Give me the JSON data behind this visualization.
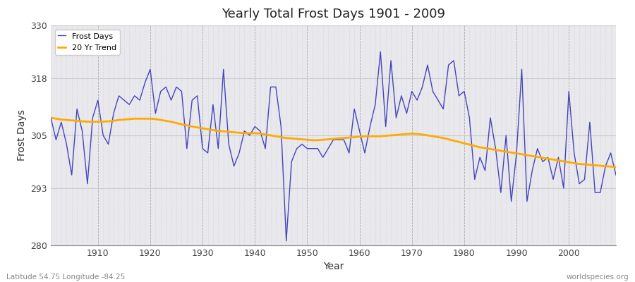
{
  "title": "Yearly Total Frost Days 1901 - 2009",
  "xlabel": "Year",
  "ylabel": "Frost Days",
  "subtitle": "Latitude 54.75 Longitude -84.25",
  "watermark": "worldspecies.org",
  "ylim": [
    280,
    330
  ],
  "yticks": [
    280,
    293,
    305,
    318,
    330
  ],
  "line_color": "#4444bb",
  "trend_color": "#ffaa00",
  "bg_color": "#e8e8ed",
  "years": [
    1901,
    1902,
    1903,
    1904,
    1905,
    1906,
    1907,
    1908,
    1909,
    1910,
    1911,
    1912,
    1913,
    1914,
    1915,
    1916,
    1917,
    1918,
    1919,
    1920,
    1921,
    1922,
    1923,
    1924,
    1925,
    1926,
    1927,
    1928,
    1929,
    1930,
    1931,
    1932,
    1933,
    1934,
    1935,
    1936,
    1937,
    1938,
    1939,
    1940,
    1941,
    1942,
    1943,
    1944,
    1945,
    1946,
    1947,
    1948,
    1949,
    1950,
    1951,
    1952,
    1953,
    1954,
    1955,
    1956,
    1957,
    1958,
    1959,
    1960,
    1961,
    1962,
    1963,
    1964,
    1965,
    1966,
    1967,
    1968,
    1969,
    1970,
    1971,
    1972,
    1973,
    1974,
    1975,
    1976,
    1977,
    1978,
    1979,
    1980,
    1981,
    1982,
    1983,
    1984,
    1985,
    1986,
    1987,
    1988,
    1989,
    1990,
    1991,
    1992,
    1993,
    1994,
    1995,
    1996,
    1997,
    1998,
    1999,
    2000,
    2001,
    2002,
    2003,
    2004,
    2005,
    2006,
    2007,
    2008,
    2009
  ],
  "frost_days": [
    309,
    304,
    308,
    303,
    296,
    311,
    306,
    294,
    309,
    313,
    305,
    303,
    310,
    314,
    313,
    312,
    314,
    313,
    317,
    320,
    310,
    315,
    316,
    313,
    316,
    315,
    302,
    313,
    314,
    302,
    301,
    312,
    302,
    320,
    303,
    298,
    301,
    306,
    305,
    307,
    306,
    302,
    316,
    316,
    307,
    281,
    299,
    302,
    303,
    302,
    302,
    302,
    300,
    302,
    304,
    304,
    304,
    301,
    311,
    306,
    301,
    307,
    312,
    324,
    307,
    322,
    309,
    314,
    310,
    315,
    313,
    316,
    321,
    315,
    313,
    311,
    321,
    322,
    314,
    315,
    309,
    295,
    300,
    297,
    309,
    302,
    292,
    305,
    290,
    301,
    320,
    290,
    297,
    302,
    299,
    300,
    295,
    300,
    293,
    315,
    301,
    294,
    295,
    308,
    292,
    292,
    298,
    301,
    296
  ],
  "trend": [
    309.0,
    308.8,
    308.6,
    308.5,
    308.4,
    308.3,
    308.2,
    308.1,
    308.1,
    308.1,
    308.1,
    308.2,
    308.3,
    308.5,
    308.6,
    308.7,
    308.8,
    308.8,
    308.8,
    308.8,
    308.7,
    308.5,
    308.3,
    308.1,
    307.8,
    307.5,
    307.3,
    307.0,
    306.8,
    306.6,
    306.4,
    306.2,
    306.0,
    305.9,
    305.8,
    305.7,
    305.6,
    305.5,
    305.5,
    305.5,
    305.4,
    305.2,
    305.0,
    304.8,
    304.6,
    304.4,
    304.3,
    304.2,
    304.1,
    304.0,
    303.9,
    303.9,
    304.0,
    304.1,
    304.2,
    304.3,
    304.4,
    304.5,
    304.6,
    304.7,
    304.8,
    304.8,
    304.8,
    304.8,
    304.9,
    305.0,
    305.1,
    305.2,
    305.3,
    305.4,
    305.3,
    305.2,
    305.0,
    304.8,
    304.6,
    304.4,
    304.1,
    303.8,
    303.5,
    303.2,
    302.9,
    302.6,
    302.3,
    302.1,
    301.9,
    301.7,
    301.5,
    301.3,
    301.1,
    300.9,
    300.7,
    300.5,
    300.3,
    300.1,
    299.9,
    299.7,
    299.5,
    299.3,
    299.1,
    298.9,
    298.7,
    298.5,
    298.4,
    298.3,
    298.2,
    298.1,
    298.0,
    297.9,
    297.8
  ]
}
